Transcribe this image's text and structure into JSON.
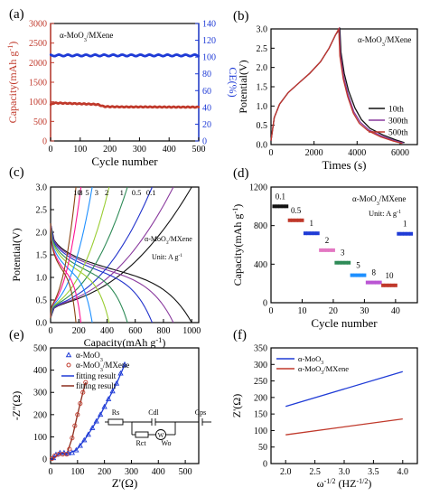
{
  "panels": {
    "a": {
      "label": "(a)",
      "annotation": "α-MoO3/MXene"
    },
    "b": {
      "label": "(b)",
      "annotation": "α-MoO3/MXene"
    },
    "c": {
      "label": "(c)",
      "annotation": "α-MoO3/MXene",
      "annotation2": "Unit: A g-1"
    },
    "d": {
      "label": "(d)",
      "annotation": "α-MoO3/MXene",
      "annotation2": "Unit: A g-1"
    },
    "e": {
      "label": "(e)",
      "circuit": {
        "rs": "Rs",
        "cdl": "Cdl",
        "cps": "Cps",
        "rct": "Rct",
        "wo": "Wo",
        "w": "W"
      }
    },
    "f": {
      "label": "(f)"
    }
  },
  "colors": {
    "red": "#c0392b",
    "blue": "#1f3bd6",
    "black": "#111111",
    "brown": "#b35c44",
    "purple": "#8a3a9e"
  },
  "chart_data": [
    {
      "panel": "a",
      "type": "scatter",
      "xlabel": "Cycle number",
      "ylabel": "Capacity(mAh g-1)",
      "y2label": "CE(%)",
      "xlim": [
        0,
        500
      ],
      "ylim": [
        0,
        3000
      ],
      "y2lim": [
        0,
        140
      ],
      "xticks": [
        0,
        100,
        200,
        300,
        400,
        500
      ],
      "yticks": [
        0,
        500,
        1000,
        1500,
        2000,
        2500,
        3000
      ],
      "y2ticks": [
        0,
        20,
        40,
        60,
        80,
        100,
        120,
        140
      ],
      "series": [
        {
          "axis": "left",
          "color": "#c0392b",
          "x": [
            1,
            5,
            10,
            20,
            40,
            60,
            80,
            100,
            120,
            140,
            160,
            170,
            180,
            200,
            250,
            300,
            350,
            400,
            450,
            500
          ],
          "y": [
            920,
            960,
            965,
            970,
            965,
            960,
            955,
            950,
            945,
            940,
            930,
            905,
            880,
            875,
            870,
            870,
            868,
            866,
            865,
            865
          ]
        },
        {
          "axis": "right",
          "color": "#1f3bd6",
          "x": [
            1,
            50,
            100,
            150,
            200,
            250,
            300,
            350,
            400,
            450,
            500
          ],
          "y": [
            102,
            102,
            102,
            102,
            102,
            102,
            102,
            102,
            102,
            102,
            102
          ]
        }
      ]
    },
    {
      "panel": "b",
      "type": "line",
      "xlabel": "Times (s)",
      "ylabel": "Potential(V)",
      "xlim": [
        0,
        6800
      ],
      "ylim": [
        0,
        3.0
      ],
      "xticks": [
        0,
        2000,
        4000,
        6000
      ],
      "yticks": [
        0.0,
        0.5,
        1.0,
        1.5,
        2.0,
        2.5,
        3.0
      ],
      "legend": "bottom-right",
      "series": [
        {
          "name": "10th",
          "color": "#111111",
          "x": [
            0,
            150,
            400,
            800,
            1300,
            1800,
            2300,
            2700,
            3000,
            3200,
            3250,
            3400,
            3600,
            3900,
            4200,
            4600,
            5200,
            5800,
            6200
          ],
          "y": [
            0.1,
            0.7,
            1.05,
            1.35,
            1.6,
            1.85,
            2.15,
            2.5,
            2.85,
            3.0,
            2.4,
            1.85,
            1.4,
            0.95,
            0.65,
            0.42,
            0.25,
            0.12,
            0.05
          ]
        },
        {
          "name": "300th",
          "color": "#8a3a9e",
          "x": [
            0,
            150,
            400,
            800,
            1300,
            1800,
            2300,
            2700,
            3000,
            3170,
            3220,
            3380,
            3580,
            3850,
            4150,
            4550,
            5150,
            5750,
            6150
          ],
          "y": [
            0.1,
            0.7,
            1.05,
            1.35,
            1.6,
            1.85,
            2.15,
            2.5,
            2.85,
            3.0,
            2.35,
            1.75,
            1.3,
            0.85,
            0.58,
            0.38,
            0.22,
            0.1,
            0.04
          ]
        },
        {
          "name": "500th",
          "color": "#c0392b",
          "x": [
            0,
            150,
            400,
            800,
            1300,
            1800,
            2300,
            2700,
            3000,
            3150,
            3200,
            3360,
            3560,
            3820,
            4100,
            4500,
            5100,
            5700,
            6100
          ],
          "y": [
            0.1,
            0.7,
            1.05,
            1.35,
            1.6,
            1.85,
            2.15,
            2.5,
            2.85,
            3.0,
            2.3,
            1.7,
            1.25,
            0.82,
            0.55,
            0.36,
            0.2,
            0.09,
            0.03
          ]
        }
      ]
    },
    {
      "panel": "c",
      "type": "line",
      "xlabel": "Capacity(mAh g-1)",
      "ylabel": "Potential(V)",
      "xlim": [
        0,
        1050
      ],
      "ylim": [
        0,
        3.0
      ],
      "xticks": [
        0,
        200,
        400,
        600,
        800,
        1000
      ],
      "yticks": [
        0.0,
        0.5,
        1.0,
        1.5,
        2.0,
        2.5,
        3.0
      ],
      "curve_labels": [
        "10",
        "8",
        "5",
        "3",
        "2",
        "1",
        "0.5",
        "0.1"
      ],
      "series": [
        {
          "name": "0.1",
          "color": "#111111",
          "capacity": 1000
        },
        {
          "name": "0.5",
          "color": "#8a3a9e",
          "capacity": 870
        },
        {
          "name": "1",
          "color": "#2233cc",
          "capacity": 720
        },
        {
          "name": "2",
          "color": "#2e8b57",
          "capacity": 545
        },
        {
          "name": "3",
          "color": "#9acd32",
          "capacity": 415
        },
        {
          "name": "5",
          "color": "#1e90ff",
          "capacity": 295
        },
        {
          "name": "8",
          "color": "#ff1493",
          "capacity": 215
        },
        {
          "name": "10",
          "color": "#8b4513",
          "capacity": 180
        }
      ]
    },
    {
      "panel": "d",
      "type": "scatter",
      "xlabel": "Cycle number",
      "ylabel": "Capacity(mAh g-1)",
      "xlim": [
        0,
        47
      ],
      "ylim": [
        0,
        1200
      ],
      "xticks": [
        0,
        10,
        20,
        30,
        40
      ],
      "yticks": [
        0,
        400,
        800,
        1200
      ],
      "groups": [
        {
          "label": "0.1",
          "x0": 1,
          "x1": 5,
          "value": 1000,
          "color": "#111111"
        },
        {
          "label": "0.5",
          "x0": 6,
          "x1": 10,
          "value": 855,
          "color": "#c0392b"
        },
        {
          "label": "1",
          "x0": 11,
          "x1": 15,
          "value": 720,
          "color": "#1f3bd6"
        },
        {
          "label": "2",
          "x0": 16,
          "x1": 20,
          "value": 545,
          "color": "#e377c2"
        },
        {
          "label": "3",
          "x0": 21,
          "x1": 25,
          "value": 415,
          "color": "#2e8b57"
        },
        {
          "label": "5",
          "x0": 26,
          "x1": 30,
          "value": 285,
          "color": "#1e90ff"
        },
        {
          "label": "8",
          "x0": 31,
          "x1": 35,
          "value": 210,
          "color": "#ba55d3"
        },
        {
          "label": "10",
          "x0": 36,
          "x1": 40,
          "value": 180,
          "color": "#c0392b"
        },
        {
          "label": "1",
          "x0": 41,
          "x1": 45,
          "value": 715,
          "color": "#1f3bd6"
        }
      ]
    },
    {
      "panel": "e",
      "type": "scatter",
      "xlabel": "Z'(Ω)",
      "ylabel": "-Z''(Ω)",
      "xlim": [
        0,
        550
      ],
      "ylim": [
        -20,
        500
      ],
      "xticks": [
        0,
        100,
        200,
        300,
        400,
        500
      ],
      "yticks": [
        0,
        100,
        200,
        300,
        400,
        500
      ],
      "legend": "top-left",
      "series": [
        {
          "name": "α-MoO3",
          "color": "#1f3bd6",
          "marker": "triangle",
          "x": [
            10,
            20,
            35,
            50,
            65,
            80,
            95,
            110,
            125,
            140,
            155,
            170,
            185,
            200,
            215,
            230,
            245,
            260,
            275
          ],
          "y": [
            5,
            20,
            28,
            28,
            26,
            28,
            40,
            60,
            85,
            110,
            140,
            170,
            200,
            235,
            270,
            305,
            340,
            385,
            425
          ]
        },
        {
          "name": "α-MoO3/MXene",
          "color": "#c0392b",
          "marker": "circle",
          "x": [
            5,
            15,
            30,
            45,
            60,
            70,
            80,
            90,
            100,
            110,
            120,
            130
          ],
          "y": [
            2,
            15,
            22,
            22,
            22,
            45,
            95,
            150,
            200,
            250,
            300,
            345
          ]
        },
        {
          "name": "fitting result",
          "color": "#1f3bd6",
          "marker": "line",
          "x": [
            10,
            35,
            65,
            95,
            125,
            155,
            185,
            215,
            245,
            275
          ],
          "y": [
            5,
            28,
            26,
            40,
            85,
            140,
            200,
            270,
            340,
            425
          ]
        },
        {
          "name": "fitting result",
          "color": "#8b2e1e",
          "marker": "line",
          "x": [
            5,
            30,
            60,
            80,
            100,
            120,
            130
          ],
          "y": [
            2,
            22,
            22,
            95,
            200,
            300,
            345
          ]
        }
      ]
    },
    {
      "panel": "f",
      "type": "line",
      "xlabel": "ω-1/2 (HZ-1/2)",
      "ylabel": "Z'(Ω)",
      "xlim": [
        1.75,
        4.25
      ],
      "ylim": [
        0,
        350
      ],
      "xticks": [
        2.0,
        2.5,
        3.0,
        3.5,
        4.0
      ],
      "yticks": [
        0,
        50,
        100,
        150,
        200,
        250,
        300,
        350
      ],
      "legend": "top-left",
      "series": [
        {
          "name": "α-MoO3",
          "color": "#1f3bd6",
          "x": [
            2.0,
            4.0
          ],
          "y": [
            173,
            278
          ]
        },
        {
          "name": "α-MoO3/MXene",
          "color": "#c0392b",
          "x": [
            2.0,
            4.0
          ],
          "y": [
            87,
            135
          ]
        }
      ]
    }
  ]
}
